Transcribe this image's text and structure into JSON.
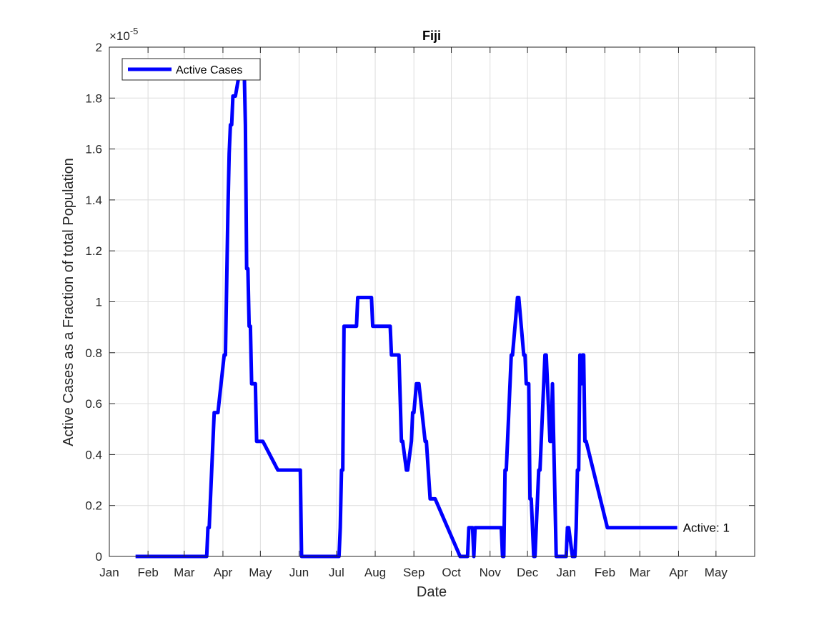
{
  "chart_data": {
    "type": "line",
    "title": "Fiji",
    "xlabel": "Date",
    "ylabel": "Active Cases as a Fraction of total Population",
    "y_multiplier_label": "×10",
    "y_multiplier_exponent": "-5",
    "xlim": [
      "2020-01-01",
      "2021-06-01"
    ],
    "ylim": [
      0,
      2
    ],
    "y_ticks": [
      0,
      0.2,
      0.4,
      0.6,
      0.8,
      1,
      1.2,
      1.4,
      1.6,
      1.8,
      2
    ],
    "y_tick_labels": [
      "0",
      "0.2",
      "0.4",
      "0.6",
      "0.8",
      "1",
      "1.2",
      "1.4",
      "1.6",
      "1.8",
      "2"
    ],
    "x_ticks": [
      "2020-01-01",
      "2020-02-01",
      "2020-03-01",
      "2020-04-01",
      "2020-05-01",
      "2020-06-01",
      "2020-07-01",
      "2020-08-01",
      "2020-09-01",
      "2020-10-01",
      "2020-11-01",
      "2020-12-01",
      "2021-01-01",
      "2021-02-01",
      "2021-03-01",
      "2021-04-01",
      "2021-05-01"
    ],
    "x_tick_labels": [
      "Jan",
      "Feb",
      "Mar",
      "Apr",
      "May",
      "Jun",
      "Jul",
      "Aug",
      "Sep",
      "Oct",
      "Nov",
      "Dec",
      "Jan",
      "Feb",
      "Mar",
      "Apr",
      "May"
    ],
    "grid": true,
    "legend_placement": "top-left",
    "series": [
      {
        "name": "Active Cases",
        "color": "#0000ff",
        "x": [
          "2020-01-22",
          "2020-03-19",
          "2020-03-20",
          "2020-03-21",
          "2020-03-25",
          "2020-03-28",
          "2020-04-02",
          "2020-04-03",
          "2020-04-05",
          "2020-04-06",
          "2020-04-07",
          "2020-04-08",
          "2020-04-09",
          "2020-04-11",
          "2020-04-15",
          "2020-04-16",
          "2020-04-17",
          "2020-04-18",
          "2020-04-19",
          "2020-04-20",
          "2020-04-21",
          "2020-04-22",
          "2020-04-23",
          "2020-04-24",
          "2020-04-25",
          "2020-04-27",
          "2020-04-28",
          "2020-05-02",
          "2020-05-03",
          "2020-05-15",
          "2020-05-17",
          "2020-06-02",
          "2020-06-03",
          "2020-06-04",
          "2020-07-03",
          "2020-07-04",
          "2020-07-05",
          "2020-07-06",
          "2020-07-07",
          "2020-07-08",
          "2020-07-17",
          "2020-07-18",
          "2020-07-29",
          "2020-07-30",
          "2020-08-13",
          "2020-08-14",
          "2020-08-20",
          "2020-08-22",
          "2020-08-23",
          "2020-08-26",
          "2020-08-27",
          "2020-08-30",
          "2020-08-31",
          "2020-09-01",
          "2020-09-03",
          "2020-09-04",
          "2020-09-05",
          "2020-09-10",
          "2020-09-11",
          "2020-09-14",
          "2020-09-15",
          "2020-09-16",
          "2020-09-18",
          "2020-10-08",
          "2020-10-09",
          "2020-10-14",
          "2020-10-15",
          "2020-10-18",
          "2020-10-19",
          "2020-10-20",
          "2020-10-21",
          "2020-11-10",
          "2020-11-11",
          "2020-11-12",
          "2020-11-13",
          "2020-11-14",
          "2020-11-18",
          "2020-11-19",
          "2020-11-23",
          "2020-11-24",
          "2020-11-28",
          "2020-11-29",
          "2020-11-30",
          "2020-12-02",
          "2020-12-03",
          "2020-12-04",
          "2020-12-06",
          "2020-12-07",
          "2020-12-10",
          "2020-12-11",
          "2020-12-15",
          "2020-12-16",
          "2020-12-19",
          "2020-12-20",
          "2020-12-21",
          "2020-12-24",
          "2020-12-25",
          "2020-12-26",
          "2021-01-01",
          "2021-01-02",
          "2021-01-03",
          "2021-01-06",
          "2021-01-07",
          "2021-01-08",
          "2021-01-09",
          "2021-01-10",
          "2021-01-11",
          "2021-01-12",
          "2021-01-13",
          "2021-01-14",
          "2021-01-15",
          "2021-01-16",
          "2021-01-17",
          "2021-02-03",
          "2021-02-04",
          "2021-02-10",
          "2021-02-11",
          "2021-02-25",
          "2021-02-26",
          "2021-02-27",
          "2021-03-02",
          "2021-03-03",
          "2021-03-04",
          "2021-03-05",
          "2021-03-06",
          "2021-03-07",
          "2021-03-08",
          "2021-03-09",
          "2021-03-10",
          "2021-03-14",
          "2021-03-15",
          "2021-03-18",
          "2021-03-19",
          "2021-03-31"
        ],
        "values": [
          0,
          0,
          0.113,
          0.113,
          0.565,
          0.565,
          0.791,
          0.791,
          1.356,
          1.582,
          1.695,
          1.695,
          1.808,
          1.808,
          1.921,
          1.921,
          1.921,
          1.921,
          1.695,
          1.13,
          1.13,
          0.904,
          0.904,
          0.678,
          0.678,
          0.678,
          0.452,
          0.452,
          0.452,
          0.339,
          0.339,
          0.339,
          0,
          0,
          0,
          0.113,
          0.339,
          0.339,
          0.904,
          0.904,
          0.904,
          1.017,
          1.017,
          0.904,
          0.904,
          0.791,
          0.791,
          0.452,
          0.452,
          0.339,
          0.339,
          0.452,
          0.565,
          0.565,
          0.678,
          0.678,
          0.678,
          0.452,
          0.452,
          0.226,
          0.226,
          0.226,
          0.226,
          0,
          0,
          0,
          0.113,
          0.113,
          0,
          0.113,
          0.113,
          0.113,
          0,
          0,
          0.339,
          0.339,
          0.791,
          0.791,
          1.017,
          1.017,
          0.791,
          0.791,
          0.678,
          0.678,
          0.226,
          0.226,
          0,
          0,
          0.339,
          0.339,
          0.791,
          0.791,
          0.452,
          0.452,
          0.678,
          0,
          0,
          0,
          0,
          0.113,
          0.113,
          0,
          0,
          0,
          0.113,
          0.339,
          0.339,
          0.791,
          0.678,
          0.791,
          0.791,
          0.452,
          0.452,
          0.113,
          0.113,
          0.113,
          0.113,
          0.113,
          0.113,
          0.113,
          0.113,
          0.113,
          0.113,
          0.113,
          0.113,
          0.113,
          0.113,
          0.113,
          0.113,
          0.113,
          0.113,
          0.113,
          0.113,
          0.113
        ]
      }
    ],
    "annotation": {
      "text": "Active: 1",
      "x": "2021-03-31",
      "y": 0.113
    }
  }
}
